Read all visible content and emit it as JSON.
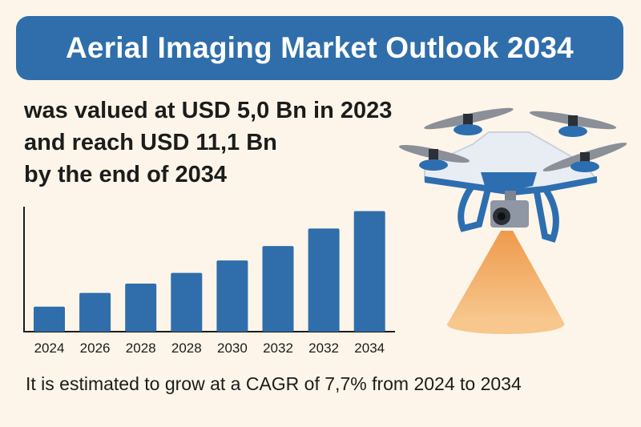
{
  "title": "Aerial Imaging Market Outlook 2034",
  "lead_lines": [
    "was valued at USD 5,0 Bn in 2023",
    "and reach USD 11,1 Bn",
    "by the end of 2034"
  ],
  "footer": "It is estimated to grow at a CAGR of 7,7% from 2024 to 2034",
  "colors": {
    "background": "#fdf5e9",
    "banner": "#2f6eaa",
    "bar": "#2f6eaa",
    "beam": "#f2a55c"
  },
  "chart_data": {
    "type": "bar",
    "title": "",
    "xlabel": "",
    "ylabel": "",
    "categories": [
      "2024",
      "2026",
      "2028",
      "2028",
      "2030",
      "2032",
      "2032",
      "2034"
    ],
    "values": [
      40,
      62,
      77,
      94,
      114,
      137,
      165,
      193
    ],
    "ylim": [
      0,
      200
    ],
    "grid": false,
    "y_tick_labels_shown": false
  }
}
